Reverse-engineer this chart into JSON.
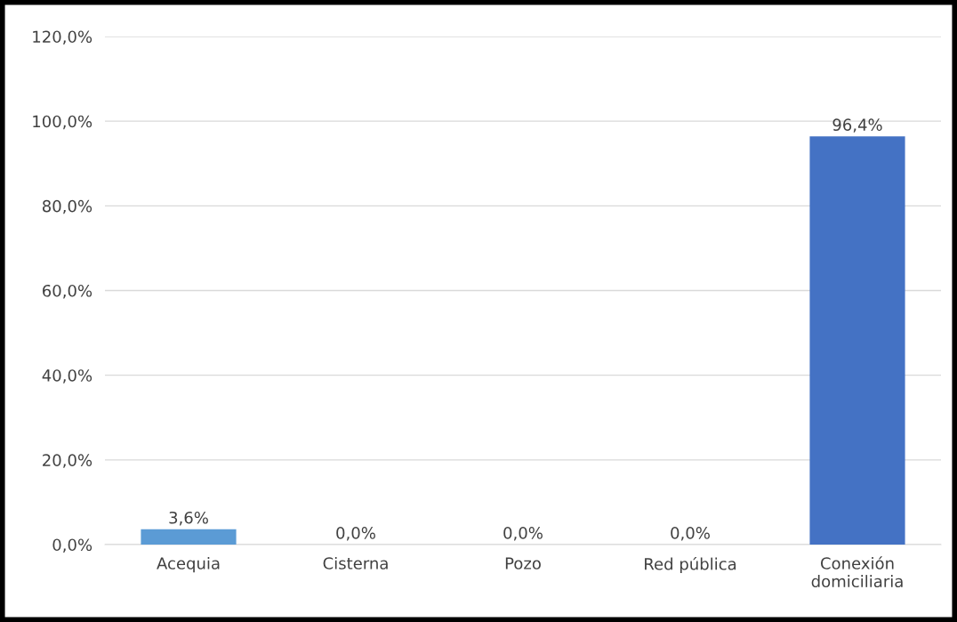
{
  "chart_data": {
    "type": "bar",
    "categories": [
      "Acequia",
      "Cisterna",
      "Pozo",
      "Red pública",
      "Conexión\ndomiciliaria"
    ],
    "values": [
      3.6,
      0,
      0,
      0,
      96.4
    ],
    "colors": [
      "#5b9bd5",
      "#4472c4",
      "#4472c4",
      "#4472c4",
      "#4472c4"
    ],
    "value_labels": [
      "3,6%",
      "0,0%",
      "0,0%",
      "0,0%",
      "96,4%"
    ],
    "ylim": [
      0,
      120
    ],
    "yticks": [
      {
        "value": 0,
        "label": "0,0%"
      },
      {
        "value": 20,
        "label": "20,0%"
      },
      {
        "value": 40,
        "label": "40,0%"
      },
      {
        "value": 60,
        "label": "60,0%"
      },
      {
        "value": 80,
        "label": "80,0%"
      },
      {
        "value": 100,
        "label": "100,0%"
      },
      {
        "value": 120,
        "label": "120,0%"
      }
    ],
    "grid": "y"
  }
}
